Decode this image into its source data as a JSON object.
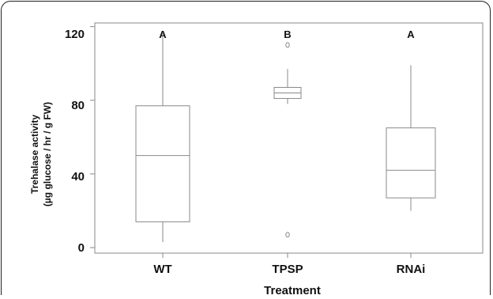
{
  "chart_data": {
    "type": "box",
    "xlabel": "Treatment",
    "ylabel_line1": "Trehalase activity",
    "ylabel_line2": "(µg glucose / hr / g FW)",
    "ylim": [
      -3,
      122
    ],
    "yticks": [
      "0",
      "40",
      "80",
      "120"
    ],
    "yticks_values": [
      0,
      40,
      80,
      120
    ],
    "grid": false,
    "categories": [
      "WT",
      "TPSP",
      "RNAi"
    ],
    "group_letters": [
      "A",
      "B",
      "A"
    ],
    "boxes": [
      {
        "name": "WT",
        "whisker_low": 3,
        "q1": 14,
        "median": 50,
        "q3": 77,
        "whisker_high": 117,
        "outliers": []
      },
      {
        "name": "TPSP",
        "whisker_low": 78,
        "q1": 81,
        "median": 84,
        "q3": 87,
        "whisker_high": 97,
        "outliers": [
          110,
          7
        ]
      },
      {
        "name": "RNAi",
        "whisker_low": 20,
        "q1": 27,
        "median": 42,
        "q3": 65,
        "whisker_high": 99,
        "outliers": []
      }
    ],
    "colors": {
      "box": "#8a8a8a",
      "axis": "#8a8a8a",
      "text": "#111111"
    }
  }
}
